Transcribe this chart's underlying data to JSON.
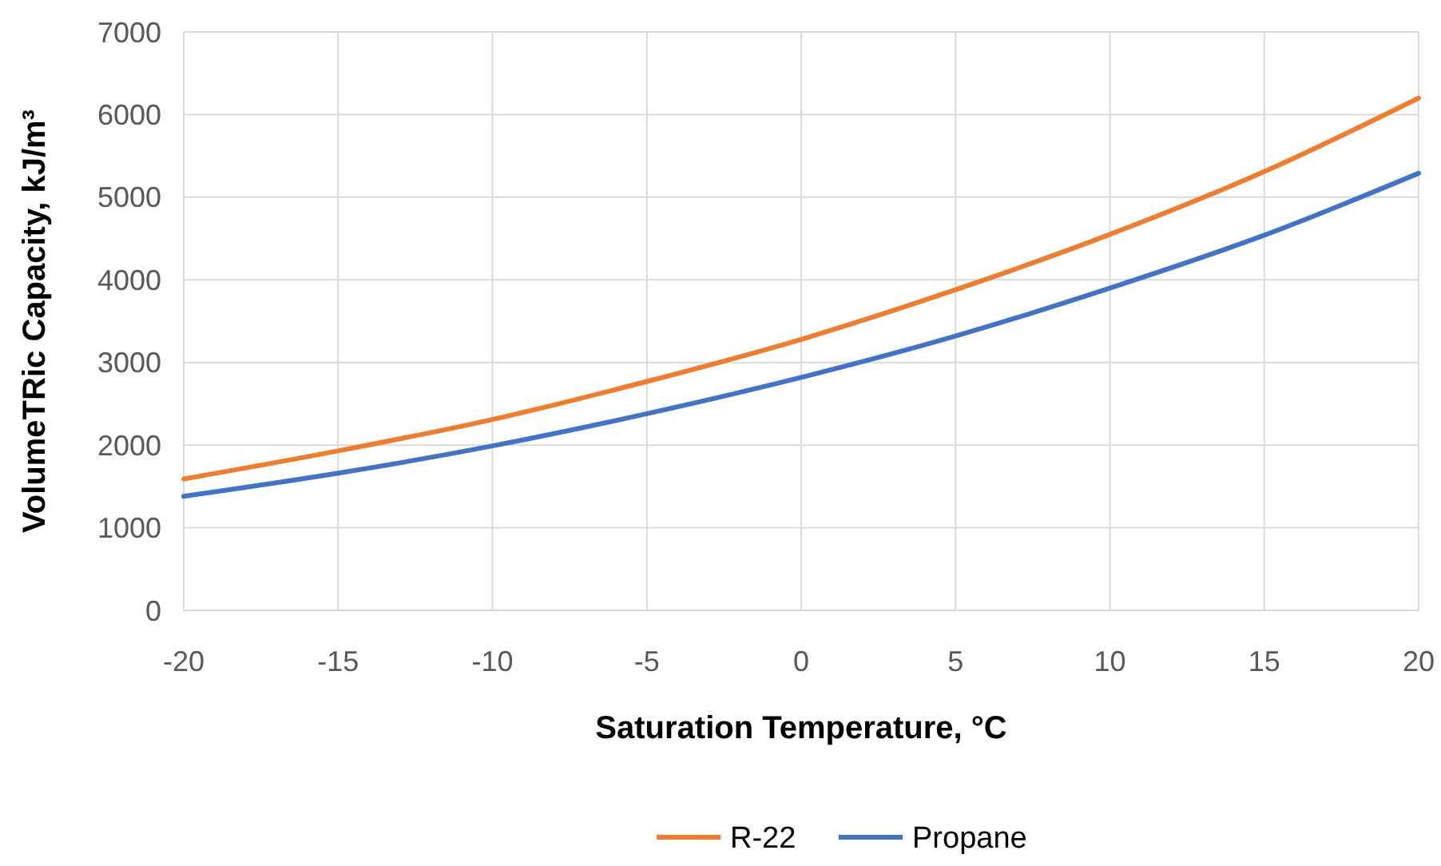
{
  "chart_data": {
    "type": "line",
    "xlabel": "Saturation Temperature, °C",
    "ylabel": "VolumeTRic Capacity, kJ/m³",
    "x": [
      -20,
      -15,
      -10,
      -5,
      0,
      5,
      10,
      15,
      20
    ],
    "series": [
      {
        "name": "R-22",
        "color": "#ed7d31",
        "values": [
          1590,
          1930,
          2310,
          2770,
          3280,
          3880,
          4550,
          5310,
          6200
        ]
      },
      {
        "name": "Propane",
        "color": "#4472c4",
        "values": [
          1380,
          1660,
          1990,
          2380,
          2820,
          3320,
          3900,
          4540,
          5290
        ]
      }
    ],
    "xlim": [
      -20,
      20
    ],
    "xticks": [
      -20,
      -15,
      -10,
      -5,
      0,
      5,
      10,
      15,
      20
    ],
    "ylim": [
      0,
      7000
    ],
    "yticks": [
      0,
      1000,
      2000,
      3000,
      4000,
      5000,
      6000,
      7000
    ],
    "grid": true,
    "legend": "bottom",
    "marker": "none",
    "line_style": "solid"
  }
}
